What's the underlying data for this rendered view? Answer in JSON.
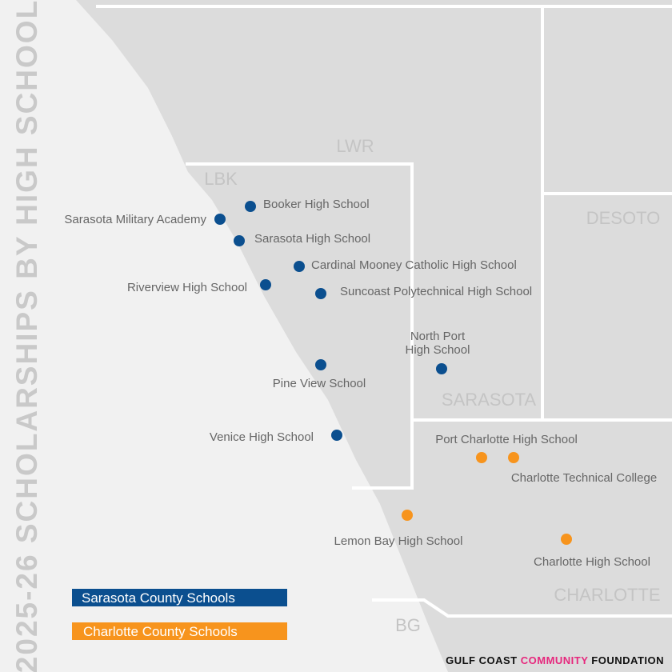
{
  "title": "2025-26 SCHOLARSHIPS BY HIGH SCHOOL",
  "regions": [
    "LWR",
    "LBK",
    "DESOTO",
    "SARASOTA",
    "CHARLOTTE",
    "BG"
  ],
  "schools": [
    {
      "name": "Booker High School"
    },
    {
      "name": "Sarasota Military Academy"
    },
    {
      "name": "Sarasota High School"
    },
    {
      "name": "Cardinal Mooney Catholic High School"
    },
    {
      "name": "Riverview High School"
    },
    {
      "name": "Suncoast Polytechnical High School"
    },
    {
      "name": "North Port",
      "name_line2": "High School"
    },
    {
      "name": "Pine View School"
    },
    {
      "name": "Venice High School"
    },
    {
      "name": "Port Charlotte High School"
    },
    {
      "name": "Charlotte Technical College"
    },
    {
      "name": "Lemon Bay High School"
    },
    {
      "name": "Charlotte High School"
    }
  ],
  "legend": [
    {
      "name": "Sarasota County Schools",
      "color": "#0b4f8f"
    },
    {
      "name": "Charlotte County Schools",
      "color": "#f7941d"
    }
  ],
  "footer": [
    "GULF COAST",
    "COMMUNITY",
    "FOUNDATION"
  ]
}
